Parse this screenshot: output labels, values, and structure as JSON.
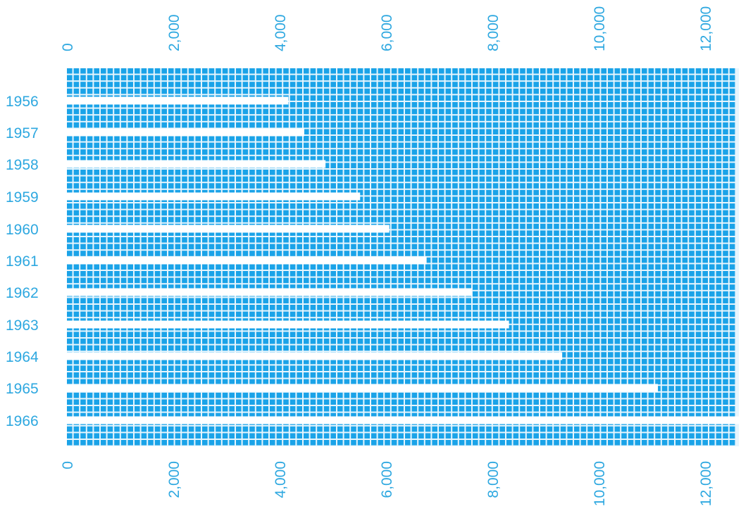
{
  "colors": {
    "accent": "#1aa3e8",
    "label": "#2ea8e0",
    "background": "#ffffff"
  },
  "chart_data": {
    "type": "bar",
    "orientation": "horizontal",
    "mark_style": "unit squares (tally blocks)",
    "categories": [
      "1956",
      "1957",
      "1958",
      "1959",
      "1960",
      "1961",
      "1962",
      "1963",
      "1964",
      "1965",
      "1966"
    ],
    "values": [
      4150,
      4450,
      4850,
      5500,
      6050,
      6750,
      7600,
      8300,
      9300,
      11100,
      12700
    ],
    "xlim": [
      0,
      12900
    ],
    "x_ticks": [
      0,
      2000,
      4000,
      6000,
      8000,
      10000,
      12000
    ],
    "x_tick_labels": [
      "0",
      "2,000",
      "4,000",
      "6,000",
      "8,000",
      "10,000",
      "12,000"
    ],
    "x_axis_positions": [
      "top",
      "bottom"
    ],
    "x_tick_label_rotation": "vertical",
    "title": "",
    "xlabel": "",
    "ylabel": "",
    "grid": false,
    "legend": "none"
  }
}
